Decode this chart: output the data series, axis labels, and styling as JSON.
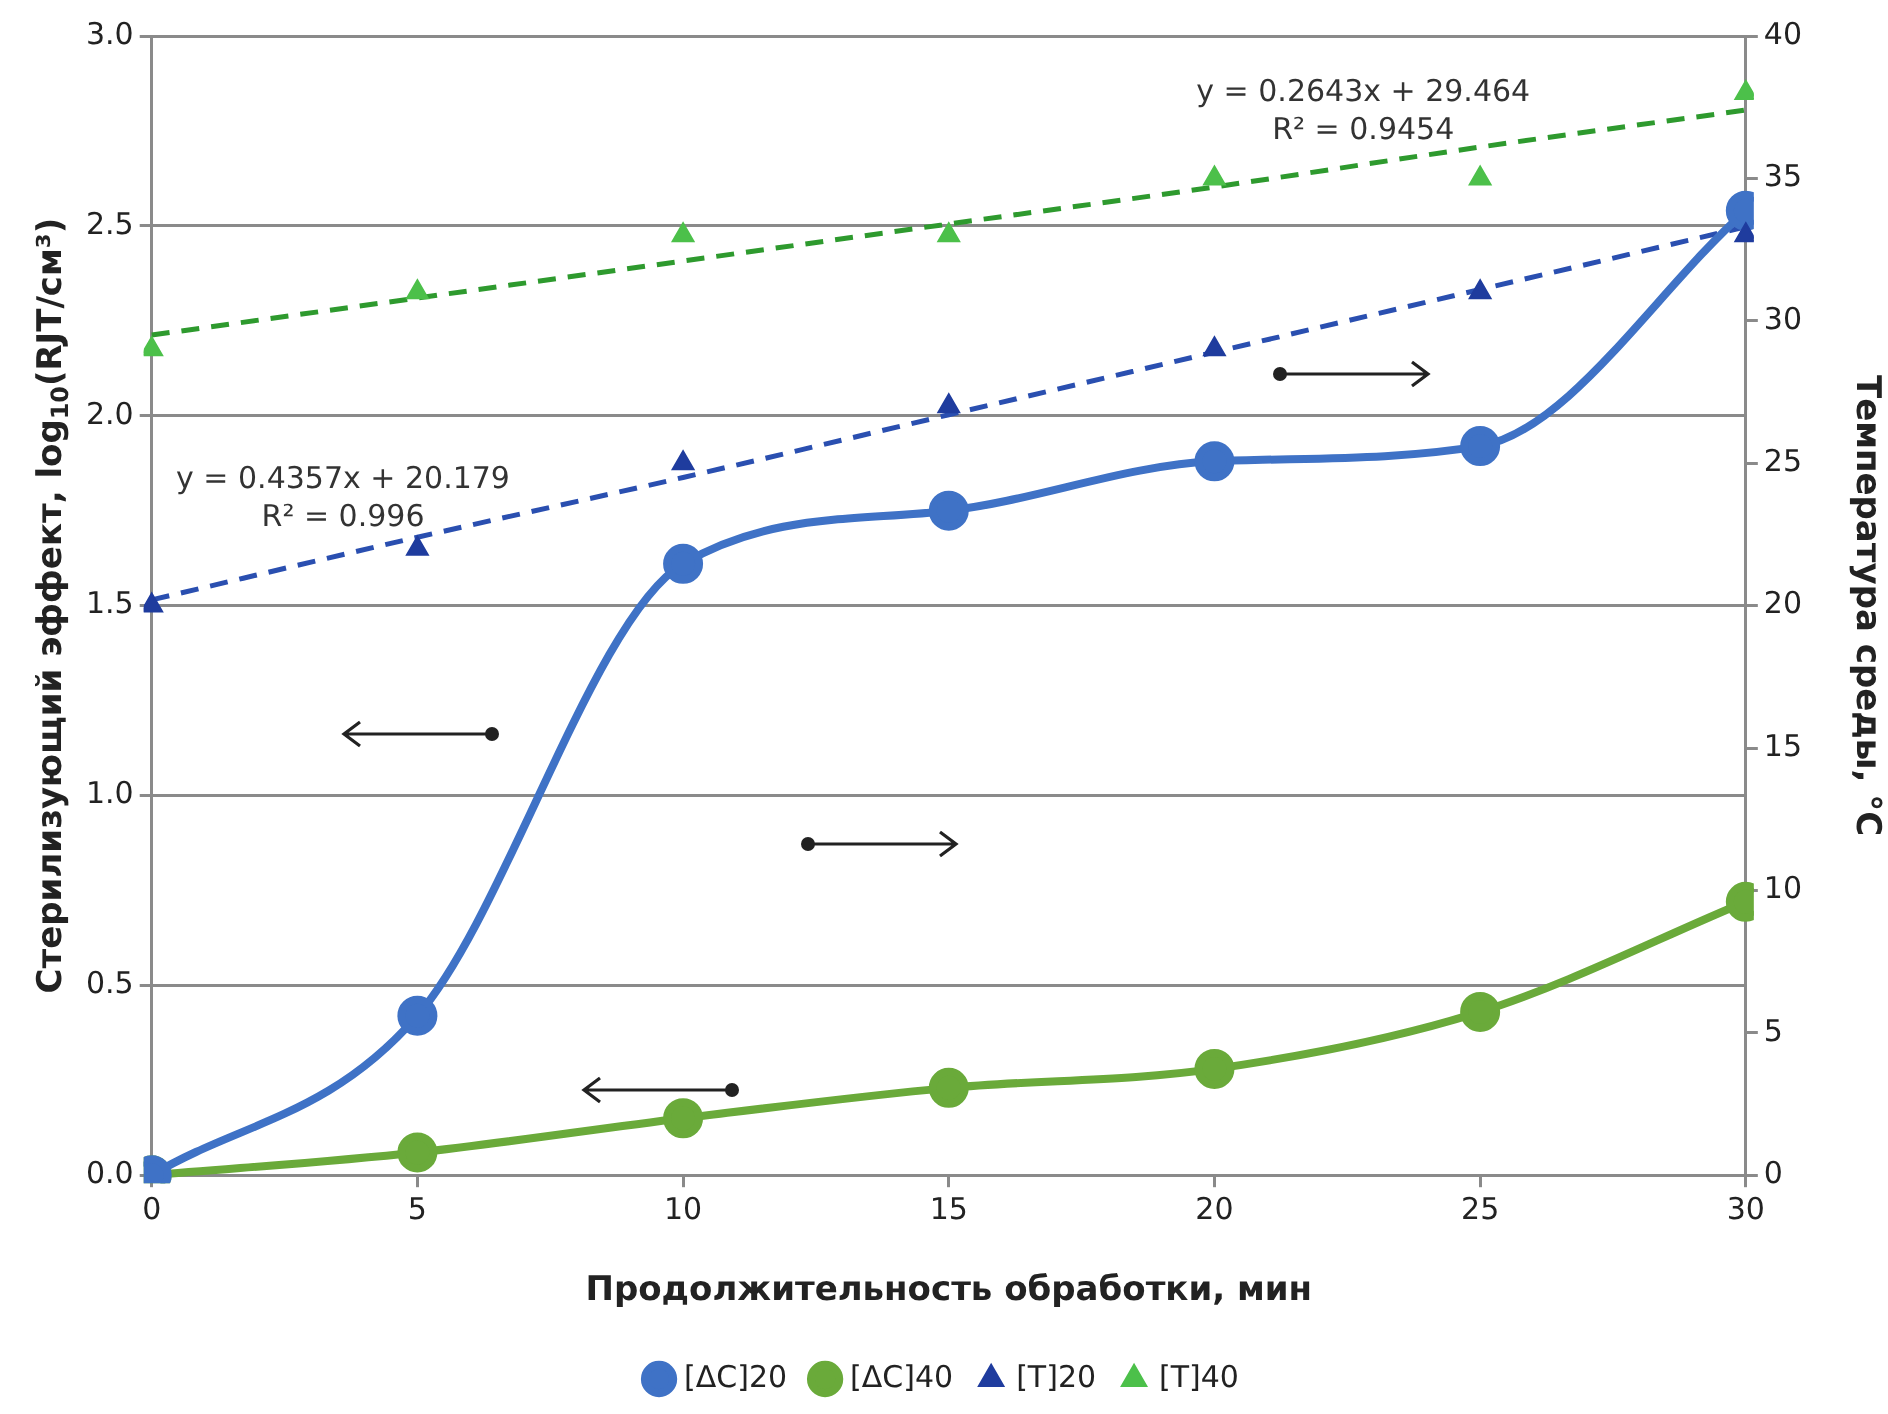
{
  "chart_data": {
    "type": "line",
    "xlabel": "Продолжительность обработки, мин",
    "ylabel": "Стерилизующий эффект, log$_{10}$(RJT/см³)",
    "y2label": "Температура среды, °C",
    "x": [
      0,
      5,
      10,
      15,
      20,
      25,
      30
    ],
    "xlim": [
      0,
      30
    ],
    "xticks": [
      0,
      5,
      10,
      15,
      20,
      25,
      30
    ],
    "ylim": [
      0,
      3
    ],
    "yticks": [
      {
        "value": 0,
        "label": "0.0"
      },
      {
        "value": 0.5,
        "label": "0.5"
      },
      {
        "value": 1,
        "label": "1.0"
      },
      {
        "value": 1.5,
        "label": "1.5"
      },
      {
        "value": 2,
        "label": "2.0"
      },
      {
        "value": 2.5,
        "label": "2.5"
      },
      {
        "value": 3,
        "label": "3.0"
      }
    ],
    "y2lim": [
      0,
      40
    ],
    "y2ticks": [
      0,
      5,
      10,
      15,
      20,
      25,
      30,
      35,
      40
    ],
    "grid": "y",
    "legend": "bottom",
    "series": [
      {
        "name": "[ΔC]20",
        "type": "line",
        "color": "#3f72c6",
        "marker": "circle",
        "line_style": "solid",
        "values": [
          0,
          0.42,
          1.61,
          1.75,
          1.88,
          1.92,
          2.54
        ]
      },
      {
        "name": "[ΔC]40",
        "type": "line",
        "color": "#6aaa3a",
        "marker": "circle",
        "line_style": "solid",
        "values": [
          0,
          0.06,
          0.15,
          0.23,
          0.28,
          0.43,
          0.72
        ]
      },
      {
        "name": "[T]20",
        "type": "scatter",
        "axis": "y2",
        "color": "#1f3c9e",
        "marker": "triangle",
        "values": [
          20,
          22,
          25,
          27,
          29,
          31,
          33
        ]
      },
      {
        "name": "[T]40",
        "type": "scatter",
        "axis": "y2",
        "color": "#4cc04a",
        "marker": "triangle",
        "values": [
          29,
          31,
          33,
          33,
          35,
          35,
          38
        ]
      },
      {
        "type": "line",
        "axis": "y2",
        "color": "#2a4fb0",
        "marker": "none",
        "line_style": "dashed",
        "values": [
          20.2,
          22.4,
          24.5,
          26.7,
          28.9,
          31.1,
          33.3
        ]
      },
      {
        "type": "line",
        "axis": "y2",
        "color": "#2e9a2e",
        "marker": "none",
        "line_style": "dashed",
        "values": [
          29.5,
          30.8,
          32.1,
          33.4,
          34.7,
          36.1,
          37.4
        ]
      }
    ],
    "annotations": [
      "y = 0.4357x + 20.179\nR² = 0.996",
      "y = 0.2643x + 29.464\nR² = 0.9454"
    ]
  }
}
